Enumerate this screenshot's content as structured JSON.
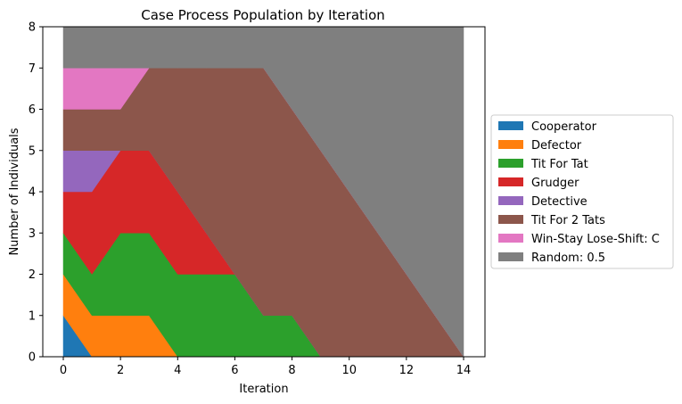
{
  "chart_data": {
    "type": "area",
    "stacked": true,
    "title": "Case Process Population by Iteration",
    "xlabel": "Iteration",
    "ylabel": "Number of Individuals",
    "xlim": [
      0,
      14
    ],
    "ylim": [
      0,
      8
    ],
    "xticks": [
      0,
      2,
      4,
      6,
      8,
      10,
      12,
      14
    ],
    "yticks": [
      0,
      1,
      2,
      3,
      4,
      5,
      6,
      7,
      8
    ],
    "grid": false,
    "legend_position": "right",
    "x": [
      0,
      1,
      2,
      3,
      4,
      5,
      6,
      7,
      8,
      9,
      10,
      11,
      12,
      13,
      14
    ],
    "series": [
      {
        "name": "Cooperator",
        "color": "#1f77b4",
        "values": [
          1,
          0,
          0,
          0,
          0,
          0,
          0,
          0,
          0,
          0,
          0,
          0,
          0,
          0,
          0
        ]
      },
      {
        "name": "Defector",
        "color": "#ff7f0e",
        "values": [
          1,
          1,
          1,
          1,
          0,
          0,
          0,
          0,
          0,
          0,
          0,
          0,
          0,
          0,
          0
        ]
      },
      {
        "name": "Tit For Tat",
        "color": "#2ca02c",
        "values": [
          1,
          1,
          2,
          2,
          2,
          2,
          2,
          1,
          1,
          0,
          0,
          0,
          0,
          0,
          0
        ]
      },
      {
        "name": "Grudger",
        "color": "#d62728",
        "values": [
          1,
          2,
          2,
          2,
          2,
          1,
          0,
          0,
          0,
          0,
          0,
          0,
          0,
          0,
          0
        ]
      },
      {
        "name": "Detective",
        "color": "#9467bd",
        "values": [
          1,
          1,
          0,
          0,
          0,
          0,
          0,
          0,
          0,
          0,
          0,
          0,
          0,
          0,
          0
        ]
      },
      {
        "name": "Tit For 2 Tats",
        "color": "#8c564b",
        "values": [
          1,
          1,
          1,
          2,
          3,
          4,
          5,
          6,
          5,
          5,
          4,
          3,
          2,
          1,
          0
        ]
      },
      {
        "name": "Win-Stay Lose-Shift: C",
        "color": "#e377c2",
        "values": [
          1,
          1,
          1,
          0,
          0,
          0,
          0,
          0,
          0,
          0,
          0,
          0,
          0,
          0,
          0
        ]
      },
      {
        "name": "Random: 0.5",
        "color": "#7f7f7f",
        "values": [
          1,
          1,
          1,
          1,
          1,
          1,
          1,
          1,
          2,
          3,
          4,
          5,
          6,
          7,
          8
        ]
      }
    ]
  }
}
